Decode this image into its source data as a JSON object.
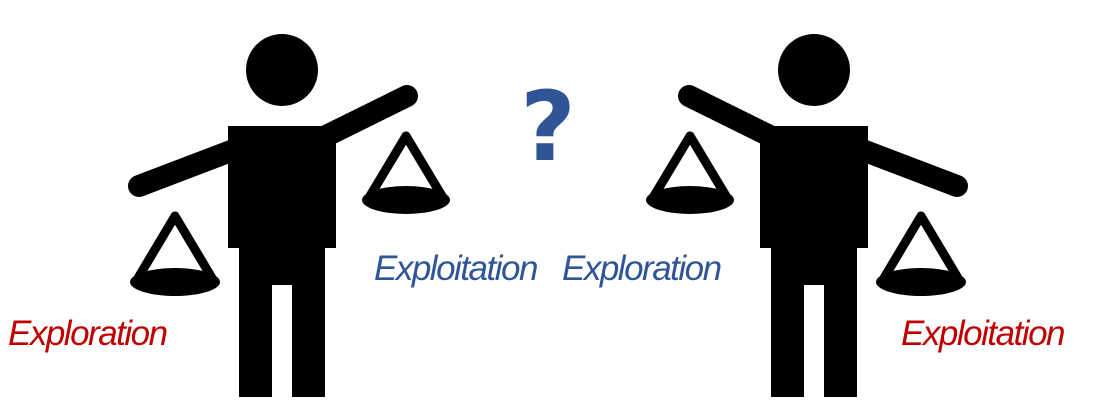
{
  "question_mark": "?",
  "left_figure": {
    "low_pan_label": "Exploration",
    "high_pan_label": "Exploitation"
  },
  "right_figure": {
    "high_pan_label": "Exploration",
    "low_pan_label": "Exploitation"
  },
  "colors": {
    "figure": "#000000",
    "highlight_label": "#c00000",
    "neutral_label": "#2f5597",
    "question_mark": "#2f5597"
  }
}
